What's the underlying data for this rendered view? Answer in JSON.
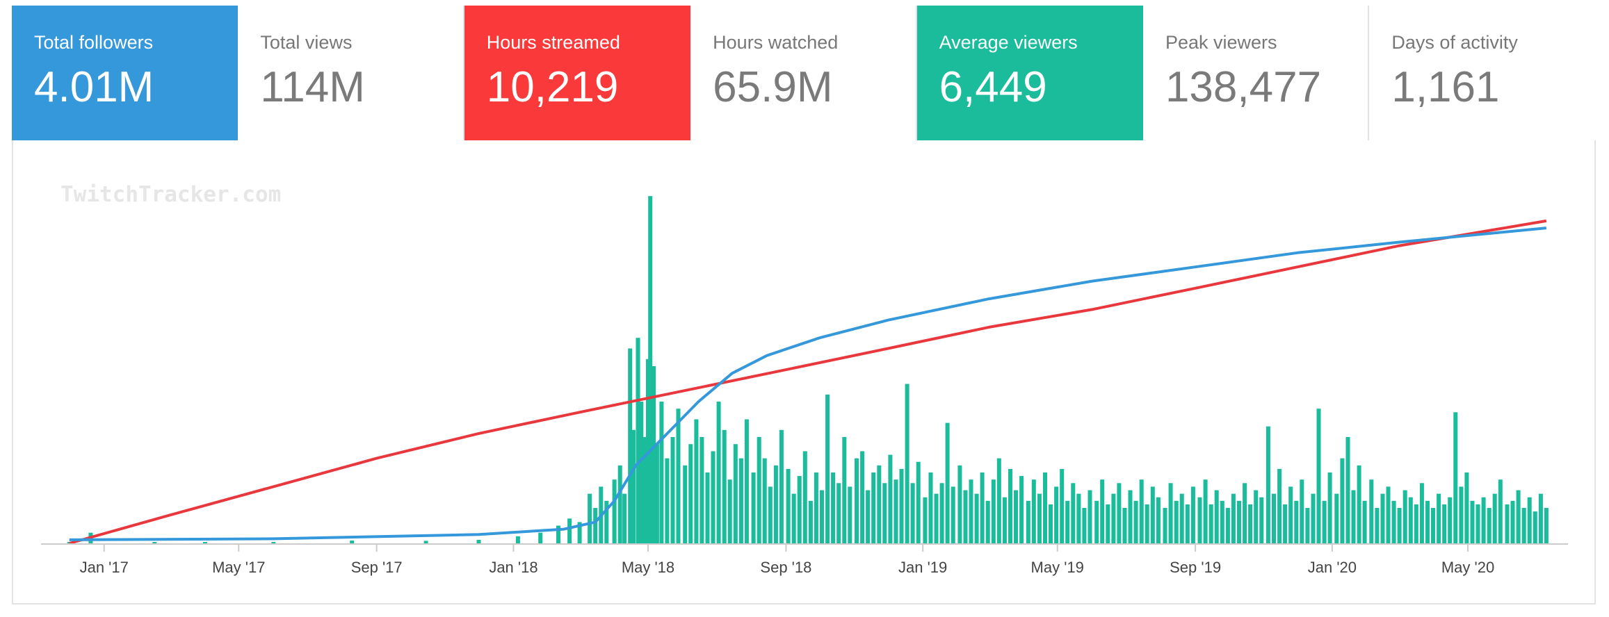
{
  "stats": [
    {
      "label": "Total followers",
      "value": "4.01M",
      "color": "#3498db"
    },
    {
      "label": "Total views",
      "value": "114M",
      "color": ""
    },
    {
      "label": "Hours streamed",
      "value": "10,219",
      "color": "#fa3a3a"
    },
    {
      "label": "Hours watched",
      "value": "65.9M",
      "color": ""
    },
    {
      "label": "Average viewers",
      "value": "6,449",
      "color": "#1abc9c"
    },
    {
      "label": "Peak viewers",
      "value": "138,477",
      "color": ""
    },
    {
      "label": "Days of activity",
      "value": "1,161",
      "color": ""
    }
  ],
  "chart_data": {
    "type": "bar",
    "title": "",
    "watermark": "TwitchTracker.com",
    "x_axis": {
      "type": "date",
      "range": [
        "2016-11-20",
        "2020-07-15"
      ],
      "tick_labels": [
        "Jan '17",
        "May '17",
        "Sep '17",
        "Jan '18",
        "May '18",
        "Sep '18",
        "Jan '19",
        "May '19",
        "Sep '19",
        "Jan '20",
        "May '20"
      ],
      "tick_dates": [
        "2017-01-01",
        "2017-05-01",
        "2017-09-01",
        "2018-01-01",
        "2018-05-01",
        "2018-09-01",
        "2019-01-01",
        "2019-05-01",
        "2019-09-01",
        "2020-01-01",
        "2020-05-01"
      ]
    },
    "grid": false,
    "legend": "none",
    "colors": {
      "bars": "#1abc9c",
      "followers": "#3498db",
      "hours": "#e8383d",
      "axis": "#cccccc",
      "tick_text": "#444444",
      "watermark": "#e6e6e6"
    },
    "y_scale": {
      "ylim": [
        0,
        1
      ],
      "unit": "fraction of chart height"
    },
    "series": [
      {
        "kind": "bars",
        "color": "#1abc9c",
        "points": [
          [
            "2016-12-01",
            0.004
          ],
          [
            "2016-12-20",
            0.03
          ],
          [
            "2017-02-15",
            0.004
          ],
          [
            "2017-04-01",
            0.004
          ],
          [
            "2017-06-01",
            0.004
          ],
          [
            "2017-08-10",
            0.008
          ],
          [
            "2017-10-15",
            0.007
          ],
          [
            "2017-12-01",
            0.01
          ],
          [
            "2018-01-05",
            0.02
          ],
          [
            "2018-01-25",
            0.03
          ],
          [
            "2018-02-10",
            0.05
          ],
          [
            "2018-02-20",
            0.07
          ],
          [
            "2018-03-01",
            0.06
          ],
          [
            "2018-03-10",
            0.14
          ],
          [
            "2018-03-15",
            0.1
          ],
          [
            "2018-03-20",
            0.16
          ],
          [
            "2018-03-25",
            0.12
          ],
          [
            "2018-04-01",
            0.18
          ],
          [
            "2018-04-06",
            0.22
          ],
          [
            "2018-04-10",
            0.14
          ],
          [
            "2018-04-15",
            0.55
          ],
          [
            "2018-04-18",
            0.32
          ],
          [
            "2018-04-22",
            0.58
          ],
          [
            "2018-04-25",
            0.4
          ],
          [
            "2018-04-28",
            0.3
          ],
          [
            "2018-05-01",
            0.52
          ],
          [
            "2018-05-03",
            0.98
          ],
          [
            "2018-05-06",
            0.5
          ],
          [
            "2018-05-09",
            0.28
          ],
          [
            "2018-05-13",
            0.4
          ],
          [
            "2018-05-18",
            0.24
          ],
          [
            "2018-05-23",
            0.3
          ],
          [
            "2018-05-28",
            0.38
          ],
          [
            "2018-06-03",
            0.22
          ],
          [
            "2018-06-08",
            0.28
          ],
          [
            "2018-06-13",
            0.35
          ],
          [
            "2018-06-18",
            0.3
          ],
          [
            "2018-06-23",
            0.2
          ],
          [
            "2018-06-28",
            0.26
          ],
          [
            "2018-07-03",
            0.4
          ],
          [
            "2018-07-08",
            0.32
          ],
          [
            "2018-07-13",
            0.18
          ],
          [
            "2018-07-18",
            0.28
          ],
          [
            "2018-07-23",
            0.24
          ],
          [
            "2018-07-28",
            0.35
          ],
          [
            "2018-08-03",
            0.2
          ],
          [
            "2018-08-08",
            0.3
          ],
          [
            "2018-08-13",
            0.24
          ],
          [
            "2018-08-18",
            0.16
          ],
          [
            "2018-08-23",
            0.22
          ],
          [
            "2018-08-28",
            0.32
          ],
          [
            "2018-09-03",
            0.21
          ],
          [
            "2018-09-08",
            0.14
          ],
          [
            "2018-09-13",
            0.19
          ],
          [
            "2018-09-18",
            0.26
          ],
          [
            "2018-09-23",
            0.12
          ],
          [
            "2018-09-28",
            0.2
          ],
          [
            "2018-10-03",
            0.15
          ],
          [
            "2018-10-08",
            0.42
          ],
          [
            "2018-10-13",
            0.2
          ],
          [
            "2018-10-18",
            0.17
          ],
          [
            "2018-10-23",
            0.3
          ],
          [
            "2018-10-28",
            0.16
          ],
          [
            "2018-11-03",
            0.24
          ],
          [
            "2018-11-08",
            0.26
          ],
          [
            "2018-11-13",
            0.15
          ],
          [
            "2018-11-18",
            0.2
          ],
          [
            "2018-11-23",
            0.22
          ],
          [
            "2018-11-28",
            0.17
          ],
          [
            "2018-12-03",
            0.25
          ],
          [
            "2018-12-08",
            0.18
          ],
          [
            "2018-12-13",
            0.21
          ],
          [
            "2018-12-18",
            0.45
          ],
          [
            "2018-12-23",
            0.17
          ],
          [
            "2018-12-28",
            0.23
          ],
          [
            "2019-01-03",
            0.13
          ],
          [
            "2019-01-08",
            0.2
          ],
          [
            "2019-01-13",
            0.14
          ],
          [
            "2019-01-18",
            0.17
          ],
          [
            "2019-01-23",
            0.34
          ],
          [
            "2019-01-28",
            0.16
          ],
          [
            "2019-02-03",
            0.22
          ],
          [
            "2019-02-08",
            0.15
          ],
          [
            "2019-02-13",
            0.18
          ],
          [
            "2019-02-18",
            0.14
          ],
          [
            "2019-02-23",
            0.2
          ],
          [
            "2019-02-28",
            0.12
          ],
          [
            "2019-03-05",
            0.18
          ],
          [
            "2019-03-10",
            0.24
          ],
          [
            "2019-03-15",
            0.13
          ],
          [
            "2019-03-20",
            0.21
          ],
          [
            "2019-03-25",
            0.15
          ],
          [
            "2019-03-30",
            0.19
          ],
          [
            "2019-04-05",
            0.12
          ],
          [
            "2019-04-10",
            0.18
          ],
          [
            "2019-04-15",
            0.14
          ],
          [
            "2019-04-20",
            0.2
          ],
          [
            "2019-04-25",
            0.11
          ],
          [
            "2019-04-30",
            0.16
          ],
          [
            "2019-05-05",
            0.21
          ],
          [
            "2019-05-10",
            0.12
          ],
          [
            "2019-05-15",
            0.17
          ],
          [
            "2019-05-20",
            0.14
          ],
          [
            "2019-05-25",
            0.1
          ],
          [
            "2019-05-30",
            0.15
          ],
          [
            "2019-06-05",
            0.12
          ],
          [
            "2019-06-10",
            0.18
          ],
          [
            "2019-06-15",
            0.11
          ],
          [
            "2019-06-20",
            0.14
          ],
          [
            "2019-06-25",
            0.17
          ],
          [
            "2019-06-30",
            0.1
          ],
          [
            "2019-07-05",
            0.15
          ],
          [
            "2019-07-10",
            0.12
          ],
          [
            "2019-07-15",
            0.18
          ],
          [
            "2019-07-20",
            0.11
          ],
          [
            "2019-07-25",
            0.16
          ],
          [
            "2019-07-30",
            0.13
          ],
          [
            "2019-08-05",
            0.1
          ],
          [
            "2019-08-10",
            0.17
          ],
          [
            "2019-08-15",
            0.12
          ],
          [
            "2019-08-20",
            0.14
          ],
          [
            "2019-08-25",
            0.11
          ],
          [
            "2019-08-30",
            0.16
          ],
          [
            "2019-09-05",
            0.13
          ],
          [
            "2019-09-10",
            0.18
          ],
          [
            "2019-09-15",
            0.11
          ],
          [
            "2019-09-20",
            0.15
          ],
          [
            "2019-09-25",
            0.12
          ],
          [
            "2019-09-30",
            0.1
          ],
          [
            "2019-10-05",
            0.14
          ],
          [
            "2019-10-10",
            0.12
          ],
          [
            "2019-10-15",
            0.17
          ],
          [
            "2019-10-20",
            0.11
          ],
          [
            "2019-10-25",
            0.15
          ],
          [
            "2019-10-30",
            0.13
          ],
          [
            "2019-11-05",
            0.33
          ],
          [
            "2019-11-10",
            0.14
          ],
          [
            "2019-11-15",
            0.21
          ],
          [
            "2019-11-20",
            0.11
          ],
          [
            "2019-11-25",
            0.16
          ],
          [
            "2019-11-30",
            0.12
          ],
          [
            "2019-12-05",
            0.18
          ],
          [
            "2019-12-10",
            0.1
          ],
          [
            "2019-12-15",
            0.14
          ],
          [
            "2019-12-20",
            0.38
          ],
          [
            "2019-12-25",
            0.12
          ],
          [
            "2019-12-30",
            0.2
          ],
          [
            "2020-01-05",
            0.14
          ],
          [
            "2020-01-10",
            0.24
          ],
          [
            "2020-01-15",
            0.3
          ],
          [
            "2020-01-20",
            0.15
          ],
          [
            "2020-01-25",
            0.22
          ],
          [
            "2020-01-30",
            0.12
          ],
          [
            "2020-02-05",
            0.18
          ],
          [
            "2020-02-10",
            0.1
          ],
          [
            "2020-02-15",
            0.14
          ],
          [
            "2020-02-20",
            0.16
          ],
          [
            "2020-02-25",
            0.12
          ],
          [
            "2020-03-01",
            0.1
          ],
          [
            "2020-03-06",
            0.15
          ],
          [
            "2020-03-11",
            0.13
          ],
          [
            "2020-03-16",
            0.11
          ],
          [
            "2020-03-21",
            0.17
          ],
          [
            "2020-03-26",
            0.12
          ],
          [
            "2020-03-31",
            0.1
          ],
          [
            "2020-04-05",
            0.14
          ],
          [
            "2020-04-10",
            0.11
          ],
          [
            "2020-04-15",
            0.13
          ],
          [
            "2020-04-20",
            0.37
          ],
          [
            "2020-04-25",
            0.16
          ],
          [
            "2020-04-30",
            0.2
          ],
          [
            "2020-05-05",
            0.12
          ],
          [
            "2020-05-10",
            0.11
          ],
          [
            "2020-05-15",
            0.13
          ],
          [
            "2020-05-20",
            0.1
          ],
          [
            "2020-05-25",
            0.14
          ],
          [
            "2020-05-30",
            0.18
          ],
          [
            "2020-06-05",
            0.11
          ],
          [
            "2020-06-10",
            0.12
          ],
          [
            "2020-06-15",
            0.15
          ],
          [
            "2020-06-20",
            0.1
          ],
          [
            "2020-06-25",
            0.13
          ],
          [
            "2020-06-30",
            0.09
          ],
          [
            "2020-07-05",
            0.14
          ],
          [
            "2020-07-10",
            0.1
          ]
        ]
      },
      {
        "kind": "line",
        "color": "#e8383d",
        "points": [
          [
            "2016-12-01",
            0.0
          ],
          [
            "2017-03-01",
            0.08
          ],
          [
            "2017-06-01",
            0.16
          ],
          [
            "2017-09-01",
            0.24
          ],
          [
            "2017-12-01",
            0.31
          ],
          [
            "2018-03-01",
            0.37
          ],
          [
            "2018-06-01",
            0.43
          ],
          [
            "2018-09-01",
            0.49
          ],
          [
            "2018-12-01",
            0.55
          ],
          [
            "2019-03-01",
            0.61
          ],
          [
            "2019-06-01",
            0.66
          ],
          [
            "2019-09-01",
            0.72
          ],
          [
            "2019-12-01",
            0.78
          ],
          [
            "2020-03-01",
            0.84
          ],
          [
            "2020-07-10",
            0.91
          ]
        ]
      },
      {
        "kind": "line",
        "color": "#3498db",
        "points": [
          [
            "2016-12-01",
            0.01
          ],
          [
            "2017-06-01",
            0.013
          ],
          [
            "2017-12-01",
            0.025
          ],
          [
            "2018-02-15",
            0.04
          ],
          [
            "2018-03-15",
            0.06
          ],
          [
            "2018-04-01",
            0.12
          ],
          [
            "2018-04-20",
            0.22
          ],
          [
            "2018-05-15",
            0.3
          ],
          [
            "2018-06-15",
            0.4
          ],
          [
            "2018-07-15",
            0.48
          ],
          [
            "2018-08-15",
            0.53
          ],
          [
            "2018-10-01",
            0.58
          ],
          [
            "2018-12-01",
            0.63
          ],
          [
            "2019-03-01",
            0.69
          ],
          [
            "2019-06-01",
            0.74
          ],
          [
            "2019-09-01",
            0.78
          ],
          [
            "2019-12-01",
            0.82
          ],
          [
            "2020-03-01",
            0.85
          ],
          [
            "2020-07-10",
            0.89
          ]
        ]
      }
    ]
  }
}
